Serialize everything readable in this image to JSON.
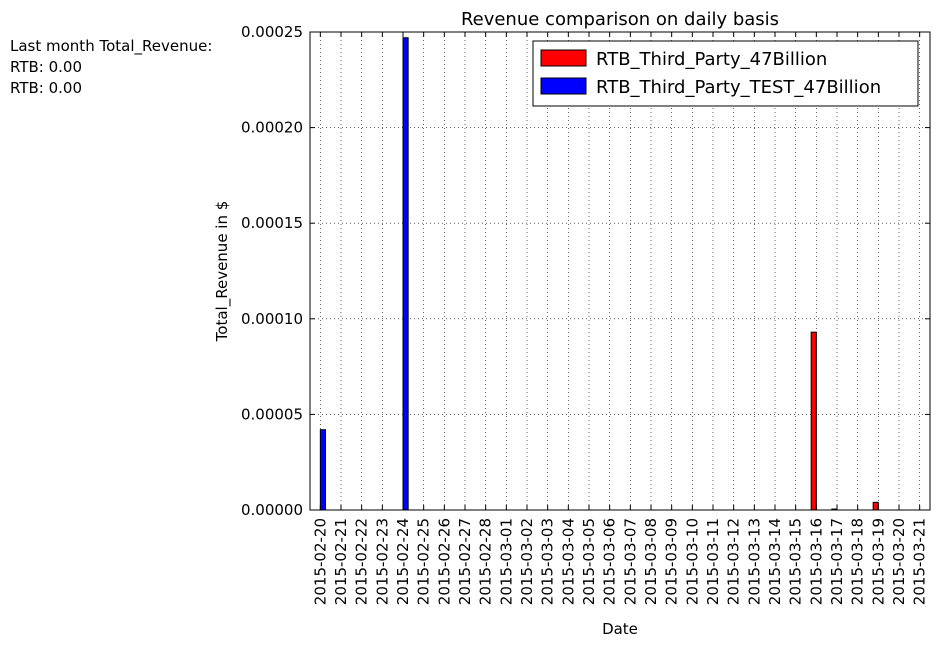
{
  "annotation": {
    "line1": "Last month Total_Revenue:",
    "line2": "RTB: 0.00",
    "line3": "RTB: 0.00"
  },
  "colors": {
    "series_a": "#ff0000",
    "series_b": "#0000ff"
  },
  "chart_data": {
    "type": "bar",
    "title": "Revenue comparison on daily basis",
    "xlabel": "Date",
    "ylabel": "Total_Revenue in $",
    "ylim": [
      0,
      0.00025
    ],
    "yticks": [
      "0.00000",
      "0.00005",
      "0.00010",
      "0.00015",
      "0.00020",
      "0.00025"
    ],
    "grid": true,
    "legend_position": "top-right",
    "categories": [
      "2015-02-20",
      "2015-02-21",
      "2015-02-22",
      "2015-02-23",
      "2015-02-24",
      "2015-02-25",
      "2015-02-26",
      "2015-02-27",
      "2015-02-28",
      "2015-03-01",
      "2015-03-02",
      "2015-03-03",
      "2015-03-04",
      "2015-03-05",
      "2015-03-06",
      "2015-03-07",
      "2015-03-08",
      "2015-03-09",
      "2015-03-10",
      "2015-03-11",
      "2015-03-12",
      "2015-03-13",
      "2015-03-14",
      "2015-03-15",
      "2015-03-16",
      "2015-03-17",
      "2015-03-18",
      "2015-03-19",
      "2015-03-20",
      "2015-03-21"
    ],
    "series": [
      {
        "name": "RTB_Third_Party_47Billion",
        "values": [
          0,
          0,
          0,
          0,
          0,
          0,
          0,
          0,
          0,
          0,
          0,
          0,
          0,
          0,
          0,
          0,
          0,
          0,
          0,
          0,
          0,
          0,
          0,
          0,
          9.3e-05,
          5e-07,
          0,
          4e-06,
          0,
          0
        ]
      },
      {
        "name": "RTB_Third_Party_TEST_47Billion",
        "values": [
          4.2e-05,
          0,
          0,
          0,
          0.000247,
          0,
          0,
          0,
          0,
          0,
          0,
          0,
          0,
          0,
          0,
          0,
          0,
          0,
          0,
          0,
          0,
          0,
          0,
          0,
          0,
          0,
          0,
          0,
          0,
          0
        ]
      }
    ]
  }
}
